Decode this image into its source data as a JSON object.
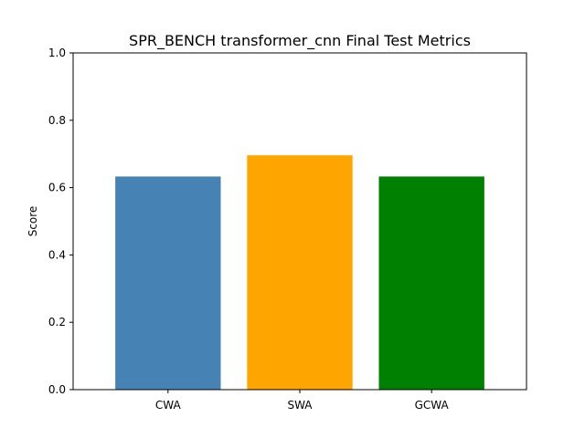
{
  "chart_data": {
    "type": "bar",
    "title": "SPR_BENCH transformer_cnn Final Test Metrics",
    "xlabel": "",
    "ylabel": "Score",
    "categories": [
      "CWA",
      "SWA",
      "GCWA"
    ],
    "values": [
      0.633,
      0.696,
      0.633
    ],
    "colors": [
      "#4682b4",
      "#ffa500",
      "#008000"
    ],
    "ylim": [
      0,
      1.0
    ],
    "yticks": [
      "0.0",
      "0.2",
      "0.4",
      "0.6",
      "0.8",
      "1.0"
    ],
    "grid": false,
    "legend": "none"
  }
}
